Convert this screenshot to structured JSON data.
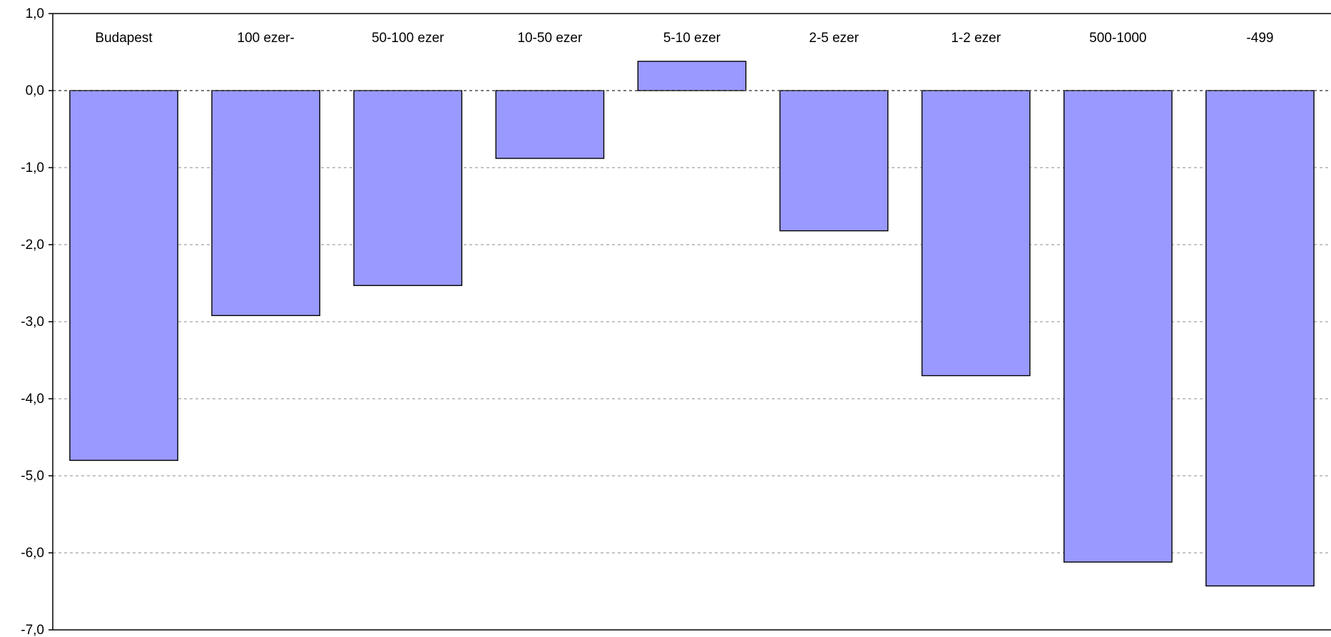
{
  "chart_data": {
    "type": "bar",
    "title": "",
    "xlabel": "",
    "ylabel": "",
    "categories": [
      "Budapest",
      "100 ezer-",
      "50-100 ezer",
      "10-50 ezer",
      "5-10 ezer",
      "2-5 ezer",
      "1-2 ezer",
      "500-1000",
      "-499"
    ],
    "values": [
      -4.8,
      -2.92,
      -2.53,
      -0.88,
      0.38,
      -1.82,
      -3.7,
      -6.12,
      -6.43
    ],
    "ylim": [
      -7.0,
      1.0
    ],
    "yticks": [
      1.0,
      0.0,
      -1.0,
      -2.0,
      -3.0,
      -4.0,
      -5.0,
      -6.0,
      -7.0
    ],
    "ytick_labels": [
      "1,0",
      "0,0",
      "-1,0",
      "-2,0",
      "-3,0",
      "-4,0",
      "-5,0",
      "-6,0",
      "-7,0"
    ],
    "grid": true,
    "legend": "none",
    "colors": {
      "bar_fill": "#9999ff",
      "bar_stroke": "#000000",
      "grid": "#a0a0a0",
      "axis": "#000000"
    }
  }
}
